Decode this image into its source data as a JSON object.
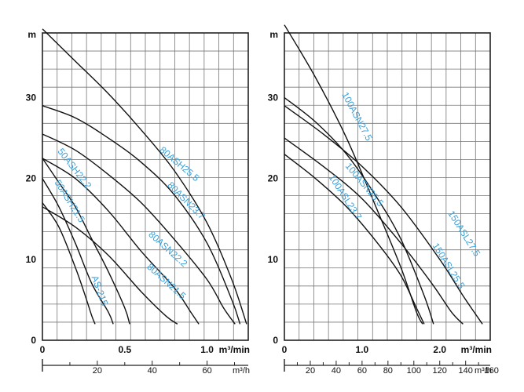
{
  "chart_data": [
    {
      "type": "line",
      "title": "",
      "ylabel": "m",
      "xlabel": "m³/min",
      "secondary_xlabel": "m³/h",
      "xlim": [
        0,
        1.25
      ],
      "ylim": [
        0,
        38
      ],
      "y_ticks": [
        "0",
        "10",
        "20",
        "30"
      ],
      "x_ticks": [
        "0",
        "0.5",
        "1.0"
      ],
      "x_unit_label": "m³/min",
      "secondary_x_ticks": [
        "20",
        "40",
        "60"
      ],
      "grid": true,
      "series": [
        {
          "name": "AS-215",
          "x": [
            0,
            0.1,
            0.2,
            0.26,
            0.3,
            0.32
          ],
          "y": [
            17,
            14,
            9,
            5.5,
            3,
            2
          ]
        },
        {
          "name": "50ASH21.5",
          "x": [
            0,
            0.1,
            0.2,
            0.3,
            0.4,
            0.43
          ],
          "y": [
            20,
            16.5,
            12,
            7,
            3.5,
            2
          ]
        },
        {
          "name": "50ASH22.2",
          "x": [
            0,
            0.1,
            0.2,
            0.3,
            0.4,
            0.5,
            0.53
          ],
          "y": [
            22.5,
            19.5,
            16.5,
            12.5,
            8.5,
            4,
            2
          ]
        },
        {
          "name": "80ASN21.5",
          "x": [
            0,
            0.2,
            0.4,
            0.6,
            0.75,
            0.82
          ],
          "y": [
            16.5,
            14,
            10.5,
            6,
            3,
            2
          ]
        },
        {
          "name": "80ASN22.2",
          "x": [
            0,
            0.2,
            0.4,
            0.6,
            0.8,
            0.9,
            0.95
          ],
          "y": [
            22.5,
            20,
            16,
            11,
            6.5,
            3.5,
            2
          ]
        },
        {
          "name": "80ASN23.7",
          "x": [
            0,
            0.2,
            0.4,
            0.6,
            0.8,
            1.0,
            1.1,
            1.17
          ],
          "y": [
            25.5,
            23.5,
            20.5,
            17,
            12.5,
            7.5,
            4,
            2
          ]
        },
        {
          "name": "80ASH25.5",
          "x": [
            0,
            0.2,
            0.4,
            0.6,
            0.8,
            1.0,
            1.15,
            1.2
          ],
          "y": [
            29,
            27.5,
            25,
            22,
            18,
            12,
            5,
            2
          ]
        },
        {
          "name": "",
          "x": [
            0,
            0.2,
            0.4,
            0.6,
            0.8,
            1.0,
            1.15,
            1.24
          ],
          "y": [
            38.5,
            34.5,
            30.5,
            26,
            21,
            14.5,
            7.5,
            2
          ]
        }
      ],
      "series_labels": [
        "AS-215",
        "50ASH21.5",
        "50ASH22.2",
        "80ASN21.5",
        "80ASN22.2",
        "80ASN23.7",
        "80ASH25.5"
      ]
    },
    {
      "type": "line",
      "title": "",
      "ylabel": "m",
      "xlabel": "m³/min",
      "secondary_xlabel": "m³/h",
      "xlim": [
        0,
        2.65
      ],
      "ylim": [
        0,
        38
      ],
      "y_ticks": [
        "0",
        "10",
        "20",
        "30"
      ],
      "x_ticks": [
        "0",
        "1.0",
        "2.0"
      ],
      "x_unit_label": "m³/min",
      "secondary_x_ticks": [
        "20",
        "40",
        "60",
        "80",
        "100",
        "120",
        "140",
        "160"
      ],
      "grid": true,
      "series": [
        {
          "name": "100ASN27.5",
          "x": [
            0,
            0.4,
            0.8,
            1.2,
            1.5,
            1.7,
            1.78
          ],
          "y": [
            39,
            32.5,
            25,
            16,
            9,
            3.5,
            2
          ]
        },
        {
          "name": "100ASN25.5",
          "x": [
            0,
            0.4,
            0.8,
            1.2,
            1.5,
            1.8,
            1.92
          ],
          "y": [
            30,
            27,
            23,
            17.5,
            12.5,
            5.5,
            2
          ]
        },
        {
          "name": "100ASL23.7",
          "x": [
            0,
            0.4,
            0.8,
            1.2,
            1.5,
            1.7,
            1.8
          ],
          "y": [
            23,
            20,
            16.5,
            12,
            8,
            4,
            2
          ]
        },
        {
          "name": "150ASL25.5",
          "x": [
            0,
            0.5,
            1.0,
            1.5,
            1.9,
            2.15,
            2.3
          ],
          "y": [
            25,
            21.5,
            17.5,
            12,
            7,
            3.5,
            2
          ]
        },
        {
          "name": "150ASL27.5",
          "x": [
            0,
            0.5,
            1.0,
            1.5,
            2.0,
            2.3,
            2.55
          ],
          "y": [
            29,
            25.5,
            21.5,
            16.5,
            10,
            5.5,
            2
          ]
        }
      ],
      "series_labels": [
        "100ASN27.5",
        "100ASN25.5",
        "100ASL23.7",
        "150ASL25.5",
        "150ASL27.5"
      ]
    }
  ]
}
